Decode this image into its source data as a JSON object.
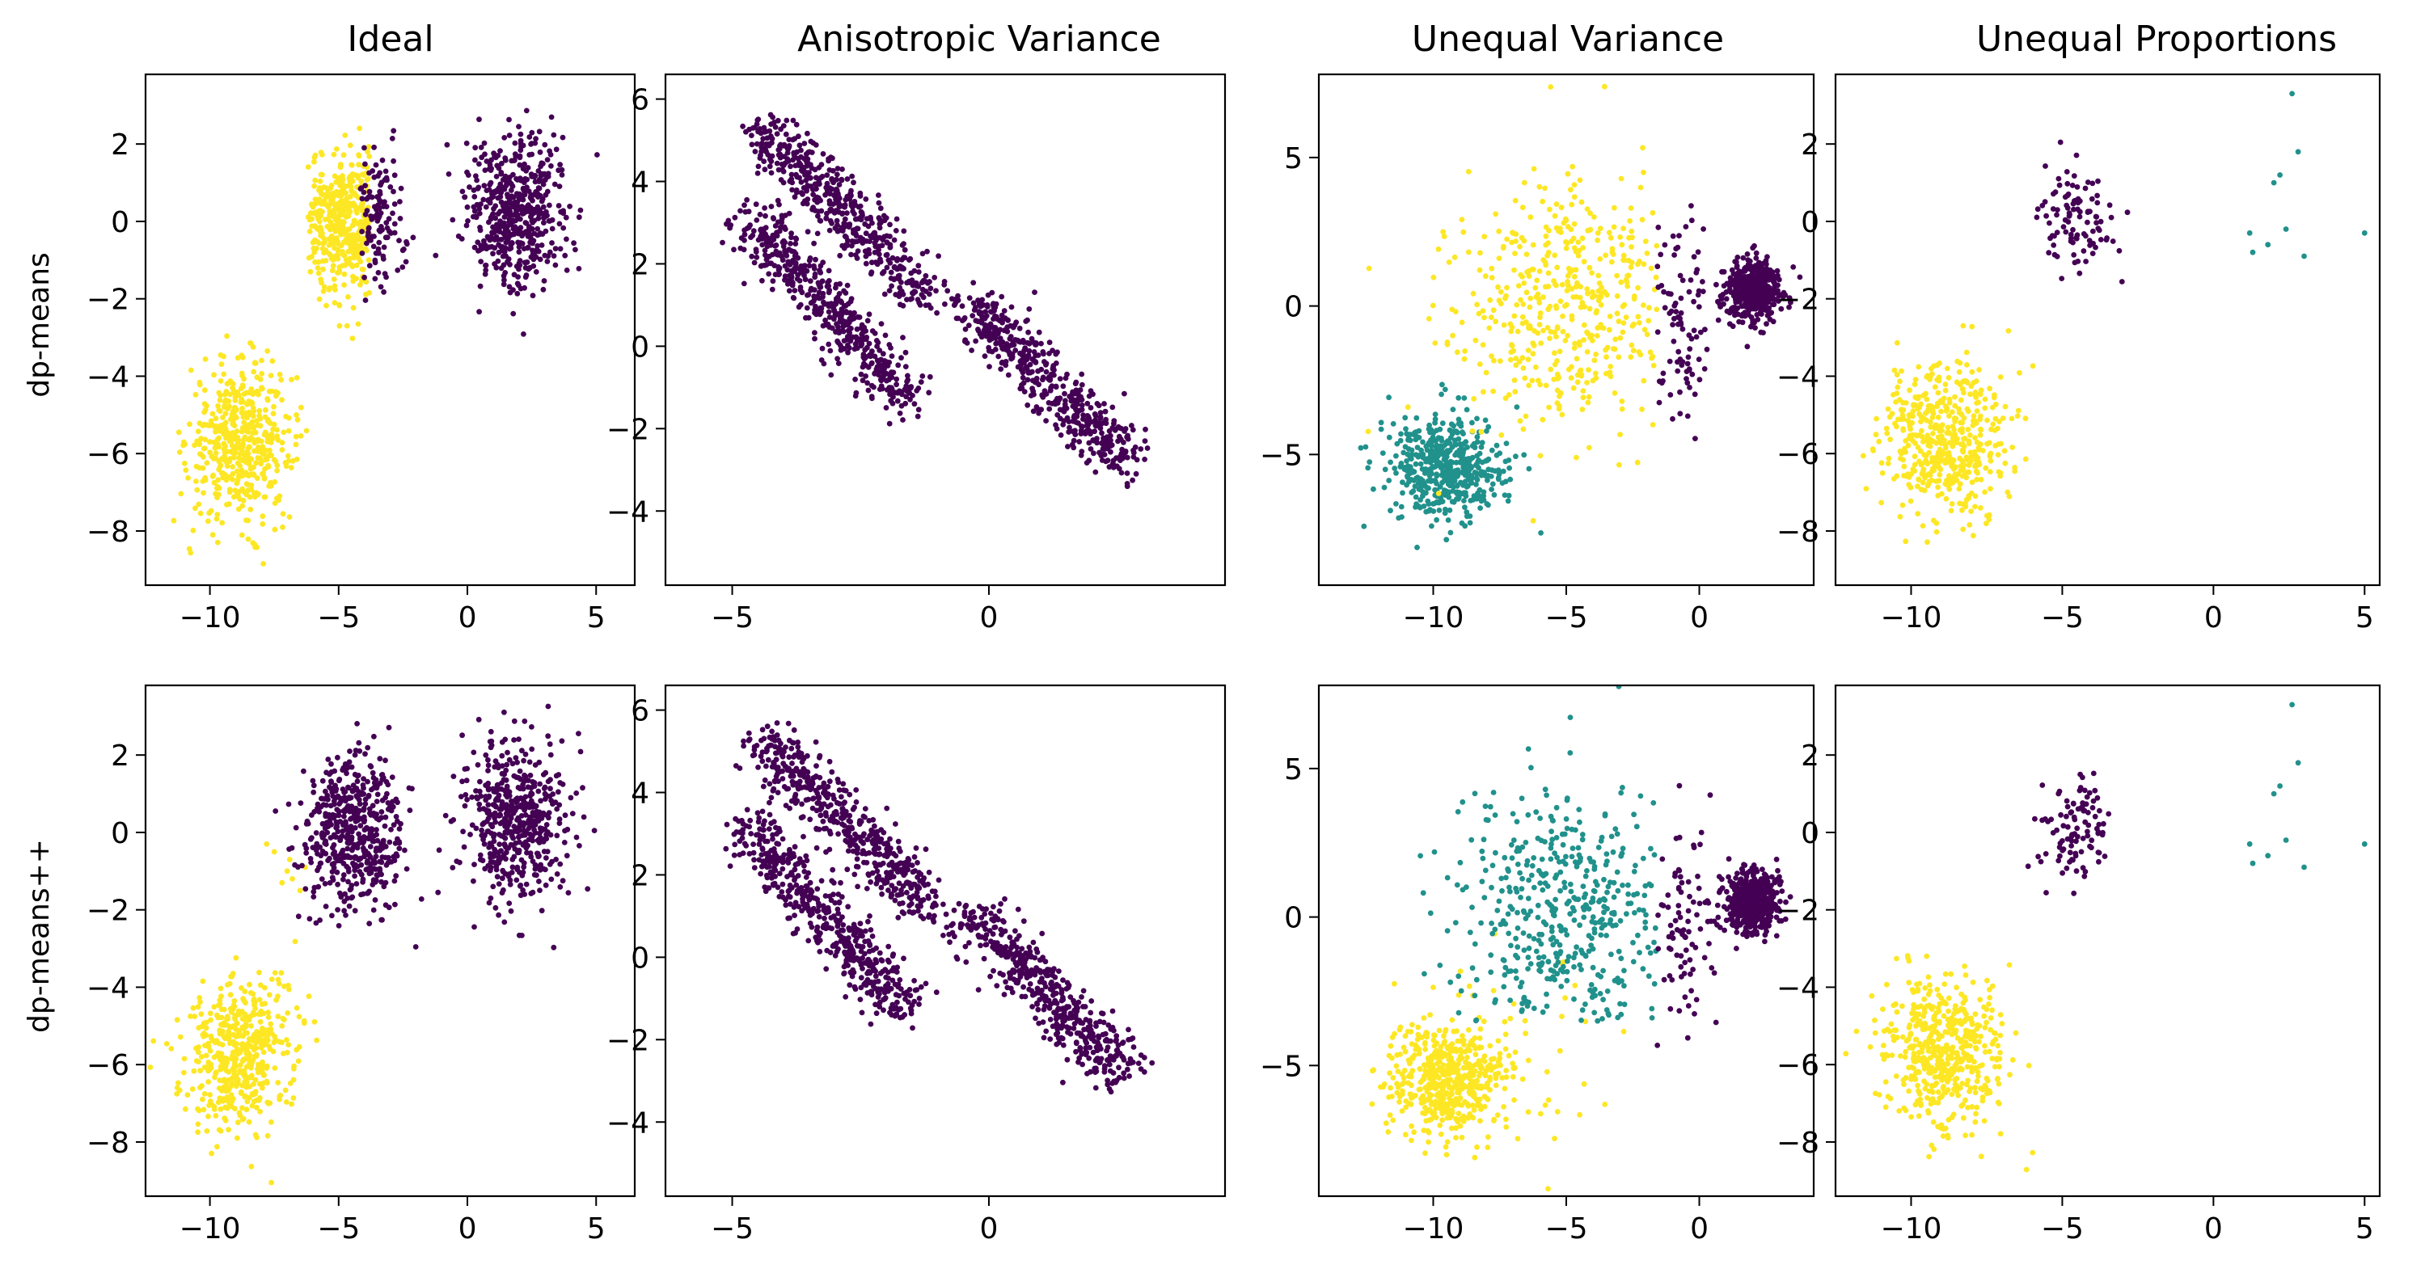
{
  "chart_data": {
    "type": "scatter",
    "layout": "2 rows x 4 columns",
    "column_titles": [
      "Ideal",
      "Anisotropic Variance",
      "Unequal Variance",
      "Unequal Proportions"
    ],
    "row_labels": [
      "dp-means",
      "dp-means++"
    ],
    "cluster_colors": {
      "purple": "#440154",
      "teal": "#21918c",
      "yellow": "#fde725"
    },
    "panels": [
      {
        "row": 0,
        "col": 0,
        "dataset": "Ideal",
        "method": "dp-means",
        "xlim": [
          -12.5,
          6.5
        ],
        "ylim": [
          -9.4,
          3.8
        ],
        "xticks": [
          -10,
          -5,
          0,
          5
        ],
        "yticks": [
          -8,
          -6,
          -4,
          -2,
          0,
          2
        ],
        "clusters": [
          {
            "color": "#fde725",
            "shape": "blob",
            "center": [
              -8.8,
              -5.7
            ],
            "spread": [
              1.0,
              1.0
            ],
            "count": 500
          },
          {
            "color": "#fde725",
            "shape": "blob",
            "center": [
              -4.7,
              0.0
            ],
            "spread": [
              0.9,
              0.9
            ],
            "count": 420,
            "x_max": -3.8,
            "x_min": -6.2
          },
          {
            "color": "#440154",
            "shape": "blob",
            "center": [
              -3.4,
              0.0
            ],
            "spread": [
              0.5,
              0.9
            ],
            "count": 120,
            "x_min": -4.2
          },
          {
            "color": "#440154",
            "shape": "blob",
            "center": [
              1.9,
              0.3
            ],
            "spread": [
              1.0,
              1.0
            ],
            "count": 500
          }
        ]
      },
      {
        "row": 0,
        "col": 1,
        "dataset": "Anisotropic Variance",
        "method": "dp-means",
        "xlim": [
          -6.3,
          4.6
        ],
        "ylim": [
          -5.8,
          6.6
        ],
        "xticks": [
          -5,
          0
        ],
        "yticks": [
          -4,
          -2,
          0,
          2,
          4,
          6
        ],
        "clusters": [
          {
            "color": "#440154",
            "shape": "band",
            "start": [
              -4.4,
              5.3
            ],
            "end": [
              -1.2,
              1.2
            ],
            "width": 0.3,
            "count": 500
          },
          {
            "color": "#440154",
            "shape": "band",
            "start": [
              -4.7,
              3.2
            ],
            "end": [
              -1.6,
              -1.3
            ],
            "width": 0.3,
            "count": 500
          },
          {
            "color": "#440154",
            "shape": "band",
            "start": [
              -0.4,
              1.1
            ],
            "end": [
              2.7,
              -2.9
            ],
            "width": 0.3,
            "count": 500
          }
        ]
      },
      {
        "row": 0,
        "col": 2,
        "dataset": "Unequal Variance",
        "method": "dp-means",
        "xlim": [
          -14.3,
          4.3
        ],
        "ylim": [
          -9.4,
          7.8
        ],
        "xticks": [
          -10,
          -5,
          0
        ],
        "yticks": [
          -5,
          0,
          5
        ],
        "clusters": [
          {
            "color": "#21918c",
            "shape": "blob",
            "center": [
              -9.5,
              -5.5
            ],
            "spread": [
              1.1,
              0.9
            ],
            "count": 500
          },
          {
            "color": "#fde725",
            "shape": "blob",
            "center": [
              -5.0,
              0.0
            ],
            "spread": [
              2.2,
              2.2
            ],
            "count": 450,
            "x_max": -1.6
          },
          {
            "color": "#440154",
            "shape": "blob",
            "center": [
              -0.8,
              -0.3
            ],
            "spread": [
              0.8,
              1.8
            ],
            "count": 90,
            "x_min": -1.6
          },
          {
            "color": "#440154",
            "shape": "blob",
            "center": [
              2.0,
              0.5
            ],
            "spread": [
              0.5,
              0.5
            ],
            "count": 500
          }
        ]
      },
      {
        "row": 0,
        "col": 3,
        "dataset": "Unequal Proportions",
        "method": "dp-means",
        "xlim": [
          -12.5,
          5.5
        ],
        "ylim": [
          -9.4,
          3.8
        ],
        "xticks": [
          -10,
          -5,
          0,
          5
        ],
        "yticks": [
          -8,
          -6,
          -4,
          -2,
          0,
          2
        ],
        "clusters": [
          {
            "color": "#fde725",
            "shape": "blob",
            "center": [
              -8.9,
              -5.6
            ],
            "spread": [
              1.0,
              1.0
            ],
            "count": 500
          },
          {
            "color": "#440154",
            "shape": "blob",
            "center": [
              -4.5,
              0.1
            ],
            "spread": [
              0.6,
              0.7
            ],
            "count": 100
          },
          {
            "color": "#21918c",
            "shape": "points",
            "points": [
              [
                2.6,
                3.3
              ],
              [
                2.8,
                1.8
              ],
              [
                2.0,
                1.0
              ],
              [
                2.2,
                1.2
              ],
              [
                1.2,
                -0.3
              ],
              [
                1.8,
                -0.6
              ],
              [
                2.4,
                -0.2
              ],
              [
                3.0,
                -0.9
              ],
              [
                5.0,
                -0.3
              ],
              [
                1.3,
                -0.8
              ]
            ]
          }
        ]
      },
      {
        "row": 1,
        "col": 0,
        "dataset": "Ideal",
        "method": "dp-means++",
        "xlim": [
          -12.5,
          6.5
        ],
        "ylim": [
          -9.4,
          3.8
        ],
        "xticks": [
          -10,
          -5,
          0,
          5
        ],
        "yticks": [
          -8,
          -6,
          -4,
          -2,
          0,
          2
        ],
        "clusters": [
          {
            "color": "#fde725",
            "shape": "blob",
            "center": [
              -8.8,
              -5.7
            ],
            "spread": [
              1.0,
              1.0
            ],
            "count": 500
          },
          {
            "color": "#fde725",
            "shape": "points",
            "points": [
              [
                -7.5,
                -0.5
              ],
              [
                -7.0,
                -1.0
              ],
              [
                -6.8,
                -1.2
              ],
              [
                -7.8,
                -0.3
              ],
              [
                -6.5,
                -1.5
              ],
              [
                -7.2,
                -1.3
              ],
              [
                -6.3,
                -0.9
              ],
              [
                -6.9,
                -0.7
              ]
            ]
          },
          {
            "color": "#440154",
            "shape": "blob",
            "center": [
              -4.5,
              0.0
            ],
            "spread": [
              1.0,
              1.0
            ],
            "count": 500
          },
          {
            "color": "#440154",
            "shape": "blob",
            "center": [
              1.9,
              0.3
            ],
            "spread": [
              1.0,
              1.0
            ],
            "count": 500
          }
        ]
      },
      {
        "row": 1,
        "col": 1,
        "dataset": "Anisotropic Variance",
        "method": "dp-means++",
        "xlim": [
          -6.3,
          4.6
        ],
        "ylim": [
          -5.8,
          6.6
        ],
        "xticks": [
          -5,
          0
        ],
        "yticks": [
          -4,
          -2,
          0,
          2,
          4,
          6
        ],
        "clusters": [
          {
            "color": "#440154",
            "shape": "band",
            "start": [
              -4.4,
              5.3
            ],
            "end": [
              -1.2,
              1.2
            ],
            "width": 0.3,
            "count": 500
          },
          {
            "color": "#440154",
            "shape": "band",
            "start": [
              -4.7,
              3.2
            ],
            "end": [
              -1.6,
              -1.3
            ],
            "width": 0.3,
            "count": 500
          },
          {
            "color": "#440154",
            "shape": "band",
            "start": [
              -0.4,
              1.1
            ],
            "end": [
              2.7,
              -2.9
            ],
            "width": 0.3,
            "count": 500
          }
        ]
      },
      {
        "row": 1,
        "col": 2,
        "dataset": "Unequal Variance",
        "method": "dp-means++",
        "xlim": [
          -14.3,
          4.3
        ],
        "ylim": [
          -9.4,
          7.8
        ],
        "xticks": [
          -10,
          -5,
          0
        ],
        "yticks": [
          -5,
          0,
          5
        ],
        "clusters": [
          {
            "color": "#fde725",
            "shape": "blob",
            "center": [
              -9.5,
              -5.5
            ],
            "spread": [
              1.1,
              0.9
            ],
            "count": 500
          },
          {
            "color": "#fde725",
            "shape": "blob",
            "center": [
              -7.5,
              -4.5
            ],
            "spread": [
              2.0,
              1.5
            ],
            "count": 60
          },
          {
            "color": "#21918c",
            "shape": "blob",
            "center": [
              -5.0,
              0.0
            ],
            "spread": [
              2.2,
              2.2
            ],
            "count": 450,
            "x_max": -1.6,
            "y_min": -3.5
          },
          {
            "color": "#440154",
            "shape": "blob",
            "center": [
              -0.8,
              -0.3
            ],
            "spread": [
              0.8,
              1.8
            ],
            "count": 90,
            "x_min": -1.6
          },
          {
            "color": "#440154",
            "shape": "blob",
            "center": [
              2.0,
              0.5
            ],
            "spread": [
              0.5,
              0.5
            ],
            "count": 500
          }
        ]
      },
      {
        "row": 1,
        "col": 3,
        "dataset": "Unequal Proportions",
        "method": "dp-means++",
        "xlim": [
          -12.5,
          5.5
        ],
        "ylim": [
          -9.4,
          3.8
        ],
        "xticks": [
          -10,
          -5,
          0,
          5
        ],
        "yticks": [
          -8,
          -6,
          -4,
          -2,
          0,
          2
        ],
        "clusters": [
          {
            "color": "#fde725",
            "shape": "blob",
            "center": [
              -8.9,
              -5.6
            ],
            "spread": [
              1.0,
              1.0
            ],
            "count": 500
          },
          {
            "color": "#440154",
            "shape": "blob",
            "center": [
              -4.5,
              0.1
            ],
            "spread": [
              0.6,
              0.7
            ],
            "count": 100
          },
          {
            "color": "#21918c",
            "shape": "points",
            "points": [
              [
                2.6,
                3.3
              ],
              [
                2.8,
                1.8
              ],
              [
                2.0,
                1.0
              ],
              [
                2.2,
                1.2
              ],
              [
                1.2,
                -0.3
              ],
              [
                1.8,
                -0.6
              ],
              [
                2.4,
                -0.2
              ],
              [
                3.0,
                -0.9
              ],
              [
                5.0,
                -0.3
              ],
              [
                1.3,
                -0.8
              ]
            ]
          }
        ]
      }
    ]
  }
}
